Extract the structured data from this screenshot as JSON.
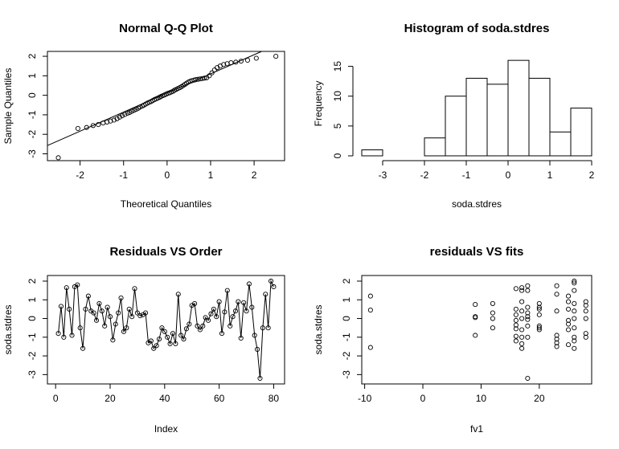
{
  "chart_data": [
    {
      "id": "qq",
      "type": "scatter",
      "title": "Normal Q-Q Plot",
      "xlabel": "Theoretical Quantiles",
      "ylabel": "Sample Quantiles",
      "xlim": [
        -2.75,
        2.7
      ],
      "ylim": [
        -3.35,
        2.25
      ],
      "xticks": [
        -2,
        -1,
        0,
        1,
        2
      ],
      "yticks": [
        -3,
        -2,
        -1,
        0,
        1,
        2
      ],
      "reference_line": {
        "intercept": 0.12,
        "slope": 0.98
      },
      "x": [
        -2.5,
        -2.05,
        -1.85,
        -1.7,
        -1.58,
        -1.47,
        -1.38,
        -1.3,
        -1.22,
        -1.15,
        -1.09,
        -1.03,
        -0.97,
        -0.91,
        -0.86,
        -0.81,
        -0.76,
        -0.71,
        -0.66,
        -0.62,
        -0.57,
        -0.53,
        -0.49,
        -0.45,
        -0.41,
        -0.37,
        -0.33,
        -0.29,
        -0.25,
        -0.21,
        -0.17,
        -0.14,
        -0.1,
        -0.06,
        -0.02,
        0.02,
        0.06,
        0.1,
        0.14,
        0.17,
        0.21,
        0.25,
        0.29,
        0.33,
        0.37,
        0.41,
        0.45,
        0.49,
        0.53,
        0.57,
        0.62,
        0.66,
        0.71,
        0.76,
        0.81,
        0.86,
        0.91,
        0.97,
        1.03,
        1.09,
        1.15,
        1.22,
        1.3,
        1.38,
        1.47,
        1.58,
        1.7,
        1.85,
        2.05,
        2.5
      ],
      "y": [
        -3.2,
        -1.7,
        -1.65,
        -1.55,
        -1.5,
        -1.42,
        -1.37,
        -1.32,
        -1.27,
        -1.2,
        -1.12,
        -1.05,
        -0.98,
        -0.92,
        -0.88,
        -0.82,
        -0.77,
        -0.72,
        -0.66,
        -0.6,
        -0.55,
        -0.5,
        -0.45,
        -0.4,
        -0.36,
        -0.32,
        -0.27,
        -0.22,
        -0.18,
        -0.14,
        -0.1,
        -0.06,
        -0.02,
        0.02,
        0.06,
        0.1,
        0.13,
        0.17,
        0.21,
        0.26,
        0.3,
        0.35,
        0.39,
        0.44,
        0.5,
        0.56,
        0.62,
        0.68,
        0.72,
        0.75,
        0.78,
        0.8,
        0.82,
        0.84,
        0.86,
        0.88,
        0.9,
        1.0,
        1.15,
        1.3,
        1.42,
        1.5,
        1.58,
        1.62,
        1.67,
        1.7,
        1.75,
        1.8,
        1.9,
        2.0
      ]
    },
    {
      "id": "hist",
      "type": "bar",
      "title": "Histogram of soda.stdres",
      "xlabel": "soda.stdres",
      "ylabel": "Frequency",
      "xlim": [
        -3.5,
        2.0
      ],
      "ylim": [
        0,
        17.5
      ],
      "xticks": [
        -3,
        -2,
        -1,
        0,
        1,
        2
      ],
      "yticks": [
        0,
        5,
        10,
        15
      ],
      "bin_edges": [
        -3.5,
        -3.0,
        -2.5,
        -2.0,
        -1.5,
        -1.0,
        -0.5,
        0.0,
        0.5,
        1.0,
        1.5,
        2.0
      ],
      "values": [
        1,
        0,
        0,
        3,
        10,
        13,
        12,
        16,
        13,
        4,
        8
      ]
    },
    {
      "id": "order",
      "type": "line",
      "title": "Residuals VS Order",
      "xlabel": "Index",
      "ylabel": "soda.stdres",
      "xlim": [
        -3,
        84
      ],
      "ylim": [
        -3.5,
        2.3
      ],
      "xticks": [
        0,
        20,
        40,
        60,
        80
      ],
      "yticks": [
        -3,
        -2,
        -1,
        0,
        1,
        2
      ],
      "x": [
        1,
        2,
        3,
        4,
        5,
        6,
        7,
        8,
        9,
        10,
        11,
        12,
        13,
        14,
        15,
        16,
        17,
        18,
        19,
        20,
        21,
        22,
        23,
        24,
        25,
        26,
        27,
        28,
        29,
        30,
        31,
        32,
        33,
        34,
        35,
        36,
        37,
        38,
        39,
        40,
        41,
        42,
        43,
        44,
        45,
        46,
        47,
        48,
        49,
        50,
        51,
        52,
        53,
        54,
        55,
        56,
        57,
        58,
        59,
        60,
        61,
        62,
        63,
        64,
        65,
        66,
        67,
        68,
        69,
        70,
        71,
        72,
        73,
        74,
        75,
        76,
        77,
        78,
        79,
        80
      ],
      "y": [
        -0.8,
        0.65,
        -1.0,
        1.65,
        0.5,
        -0.9,
        1.7,
        1.8,
        -0.5,
        -1.6,
        0.5,
        1.2,
        0.4,
        0.3,
        -0.1,
        0.8,
        0.4,
        -0.4,
        0.6,
        0.1,
        -1.15,
        -0.3,
        0.3,
        1.1,
        -0.7,
        -0.5,
        0.5,
        0.1,
        1.6,
        0.3,
        0.15,
        0.2,
        0.3,
        -1.3,
        -1.2,
        -1.6,
        -1.45,
        -1.1,
        -0.5,
        -0.7,
        -1.0,
        -1.35,
        -0.8,
        -1.35,
        1.3,
        -0.9,
        -1.1,
        -0.55,
        -0.3,
        0.7,
        0.8,
        -0.4,
        -0.6,
        -0.4,
        0.05,
        -0.1,
        0.25,
        0.5,
        0.1,
        0.9,
        -0.8,
        0.35,
        1.5,
        -0.4,
        0.1,
        0.4,
        0.9,
        -1.05,
        0.85,
        0.4,
        1.85,
        0.6,
        -0.9,
        -1.65,
        -3.2,
        -0.5,
        1.3,
        -0.5,
        2.0,
        1.7
      ]
    },
    {
      "id": "fits",
      "type": "scatter",
      "title": "residuals VS fits",
      "xlabel": "fv1",
      "ylabel": "soda.stdres",
      "xlim": [
        -10.5,
        29
      ],
      "ylim": [
        -3.5,
        2.3
      ],
      "xticks": [
        -10,
        0,
        10,
        20
      ],
      "yticks": [
        -3,
        -2,
        -1,
        0,
        1,
        2
      ],
      "x": [
        -9,
        -9,
        -9,
        9,
        9,
        9,
        9,
        12,
        12,
        12,
        12,
        16,
        16,
        16,
        16,
        16,
        16,
        16,
        16,
        17,
        17,
        17,
        17,
        17,
        17,
        17,
        17,
        17,
        18,
        18,
        18,
        18,
        18,
        18,
        18,
        18,
        18,
        20,
        20,
        20,
        20,
        20,
        20,
        20,
        23,
        23,
        23,
        23,
        23,
        23,
        23,
        25,
        25,
        25,
        25,
        25,
        25,
        25,
        26,
        26,
        26,
        26,
        26,
        26,
        26,
        26,
        26,
        26,
        28,
        28,
        28,
        28,
        28,
        28
      ],
      "y": [
        1.2,
        0.45,
        -1.55,
        0.75,
        0.1,
        0.05,
        -0.9,
        0.8,
        0.3,
        0.0,
        -0.5,
        1.6,
        0.5,
        0.2,
        -0.1,
        -0.35,
        -0.55,
        -0.95,
        -1.2,
        1.65,
        0.4,
        0.0,
        -0.6,
        -1.0,
        -1.35,
        -1.6,
        1.5,
        0.9,
        1.75,
        1.5,
        0.6,
        0.3,
        0.1,
        -0.05,
        -0.4,
        -1.0,
        -3.2,
        0.8,
        0.5,
        0.2,
        -0.4,
        -0.6,
        0.6,
        -0.5,
        1.75,
        1.3,
        0.4,
        -0.9,
        -1.1,
        -1.3,
        -1.5,
        1.2,
        0.9,
        0.5,
        -0.1,
        -0.3,
        -0.6,
        -1.4,
        2.0,
        1.9,
        1.5,
        0.8,
        0.4,
        0.0,
        -0.5,
        -1.0,
        -1.2,
        -1.6,
        0.9,
        0.7,
        0.4,
        0.0,
        -0.8,
        -1.0
      ]
    }
  ]
}
